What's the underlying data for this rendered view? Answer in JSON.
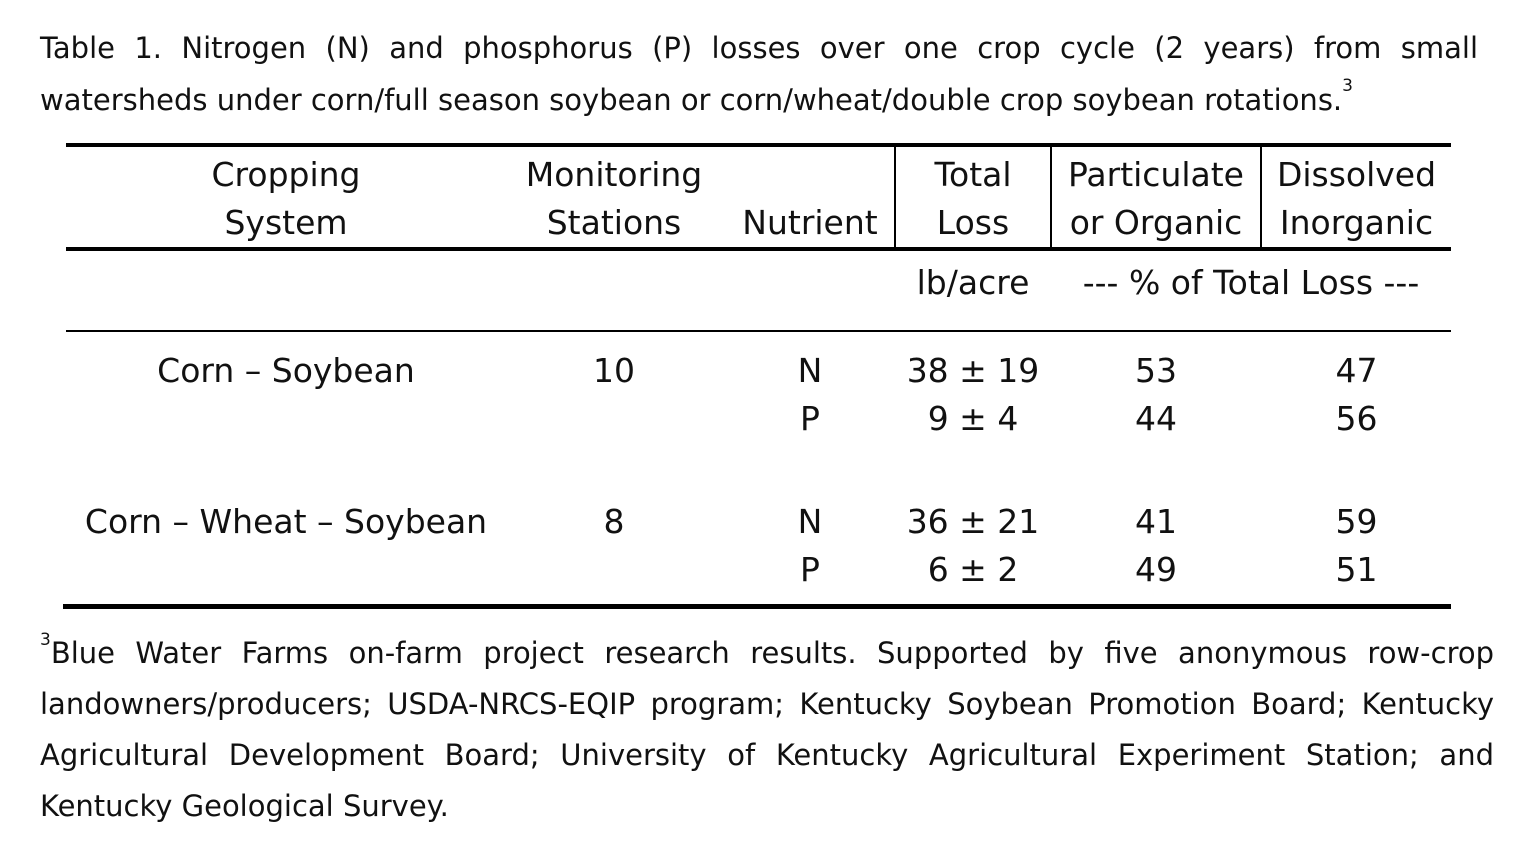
{
  "caption": {
    "line1": "Table 1. Nitrogen (N) and phosphorus (P) losses over one crop cycle (2 years) from small",
    "line2": "watersheds under corn/full season soybean or corn/wheat/double crop soybean rotations.",
    "ref": "3"
  },
  "table": {
    "headers": {
      "cropping_system": [
        "Cropping",
        "System"
      ],
      "monitoring_stations": [
        "Monitoring",
        "Stations"
      ],
      "nutrient": "Nutrient",
      "total_loss": [
        "Total",
        "Loss"
      ],
      "particulate": [
        "Particulate",
        "or Organic"
      ],
      "dissolved": [
        "Dissolved",
        "Inorganic"
      ]
    },
    "units": {
      "total_loss": "lb/acre",
      "percent": "--- % of Total Loss ---"
    },
    "groups": [
      {
        "system": "Corn – Soybean",
        "stations": "10",
        "rows": [
          {
            "nutrient": "N",
            "total": "38 ± 19",
            "particulate": "53",
            "dissolved": "47"
          },
          {
            "nutrient": "P",
            "total": "9 ± 4",
            "particulate": "44",
            "dissolved": "56"
          }
        ]
      },
      {
        "system": "Corn – Wheat – Soybean",
        "stations": "8",
        "rows": [
          {
            "nutrient": "N",
            "total": "36 ± 21",
            "particulate": "41",
            "dissolved": "59"
          },
          {
            "nutrient": "P",
            "total": "6 ± 2",
            "particulate": "49",
            "dissolved": "51"
          }
        ]
      }
    ]
  },
  "footnote": {
    "ref": "3",
    "lines": [
      "Blue Water Farms on-farm project research results. Supported by five anonymous row-crop",
      "landowners/producers; USDA-NRCS-EQIP program; Kentucky Soybean Promotion Board; Kentucky",
      "Agricultural Development Board; University of Kentucky Agricultural Experiment Station; and",
      "Kentucky Geological Survey."
    ]
  }
}
